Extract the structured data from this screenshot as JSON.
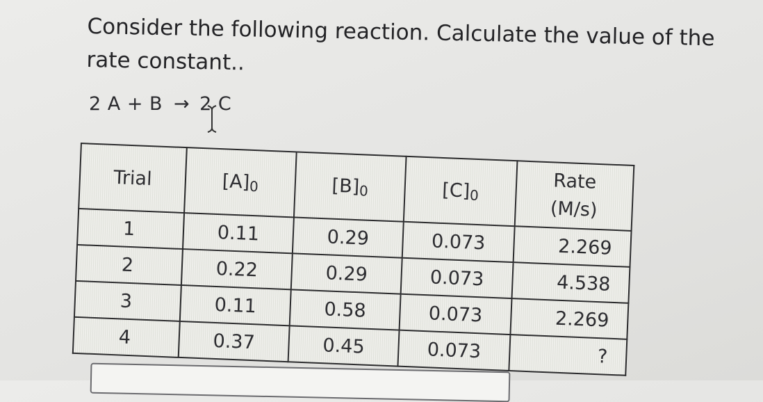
{
  "question": "Consider the following reaction. Calculate the value of the rate constant..",
  "reaction": {
    "lhs": "2 A + B",
    "arrow": "→",
    "rhs": "2 C"
  },
  "icons": {
    "cursor": "text-cursor-icon"
  },
  "table": {
    "headers": {
      "trial": "Trial",
      "a": "[A]",
      "b": "[B]",
      "c": "[C]",
      "subscript": "0",
      "rate": "Rate",
      "rate_unit": "(M/s)"
    },
    "rows": [
      {
        "trial": "1",
        "a": "0.11",
        "b": "0.29",
        "c": "0.073",
        "rate": "2.269"
      },
      {
        "trial": "2",
        "a": "0.22",
        "b": "0.29",
        "c": "0.073",
        "rate": "4.538"
      },
      {
        "trial": "3",
        "a": "0.11",
        "b": "0.58",
        "c": "0.073",
        "rate": "2.269"
      },
      {
        "trial": "4",
        "a": "0.37",
        "b": "0.45",
        "c": "0.073",
        "rate": "?"
      }
    ]
  }
}
